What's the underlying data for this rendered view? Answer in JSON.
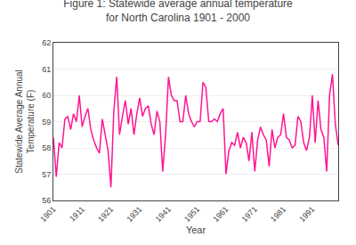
{
  "chart_data": {
    "type": "line",
    "title": "Figure 1: Statewide average annual temperature",
    "subtitle": "for North Carolina 1901 - 2000",
    "xlabel": "Year",
    "ylabel": "Statewide Average Annual\nTemperature (F)",
    "x": [
      1901,
      1902,
      1903,
      1904,
      1905,
      1906,
      1907,
      1908,
      1909,
      1910,
      1911,
      1912,
      1913,
      1914,
      1915,
      1916,
      1917,
      1918,
      1919,
      1920,
      1921,
      1922,
      1923,
      1924,
      1925,
      1926,
      1927,
      1928,
      1929,
      1930,
      1931,
      1932,
      1933,
      1934,
      1935,
      1936,
      1937,
      1938,
      1939,
      1940,
      1941,
      1942,
      1943,
      1944,
      1945,
      1946,
      1947,
      1948,
      1949,
      1950,
      1951,
      1952,
      1953,
      1954,
      1955,
      1956,
      1957,
      1958,
      1959,
      1960,
      1961,
      1962,
      1963,
      1964,
      1965,
      1966,
      1967,
      1968,
      1969,
      1970,
      1971,
      1972,
      1973,
      1974,
      1975,
      1976,
      1977,
      1978,
      1979,
      1980,
      1981,
      1982,
      1983,
      1984,
      1985,
      1986,
      1987,
      1988,
      1989,
      1990,
      1991,
      1992,
      1993,
      1994,
      1995,
      1996,
      1997,
      1998,
      1999,
      2000
    ],
    "values": [
      58.4,
      56.9,
      58.2,
      58.0,
      59.1,
      59.2,
      58.7,
      59.3,
      59.0,
      60.0,
      58.8,
      59.2,
      59.5,
      58.7,
      58.3,
      58.0,
      57.8,
      59.1,
      58.5,
      57.9,
      56.5,
      59.4,
      60.7,
      58.5,
      59.2,
      59.8,
      58.9,
      59.5,
      58.5,
      59.3,
      59.9,
      59.2,
      59.5,
      59.6,
      58.9,
      58.5,
      59.4,
      59.0,
      57.1,
      58.5,
      60.7,
      60.0,
      59.8,
      59.8,
      59.0,
      59.0,
      60.0,
      59.3,
      59.0,
      58.8,
      59.0,
      59.0,
      60.5,
      60.3,
      59.0,
      59.0,
      59.1,
      59.0,
      59.3,
      59.5,
      57.0,
      57.9,
      58.2,
      58.1,
      58.6,
      58.0,
      58.4,
      58.2,
      57.5,
      58.6,
      57.1,
      58.3,
      58.8,
      58.5,
      58.3,
      57.3,
      58.7,
      58.0,
      58.4,
      58.5,
      59.3,
      58.4,
      58.3,
      58.0,
      58.1,
      59.2,
      59.0,
      58.2,
      57.9,
      58.4,
      60.0,
      58.2,
      59.8,
      58.7,
      58.4,
      57.1,
      60.0,
      60.8,
      58.9,
      58.1
    ],
    "color": "#FF1493",
    "xlim": [
      1901,
      2000
    ],
    "xticks": [
      1901,
      1911,
      1921,
      1931,
      1941,
      1951,
      1961,
      1971,
      1981,
      1991
    ],
    "ylim": [
      56,
      62
    ],
    "yticks": [
      56,
      57,
      58,
      59,
      60,
      61,
      62
    ],
    "grid": "y"
  }
}
